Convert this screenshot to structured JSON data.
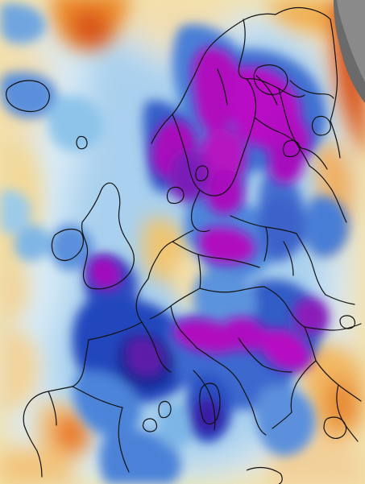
{
  "map": {
    "type": "weather-anomaly-map",
    "region": "Europe",
    "legend_visible": false,
    "colors": {
      "warm_deep": "#d95a12",
      "warm": "#f0a23c",
      "warm_light": "#f4d58b",
      "neutral": "#eaf3f8",
      "cold_light": "#b8d8ef",
      "cold": "#6fa6df",
      "cold_deep": "#2d4ec1",
      "cold_deeper": "#1d2b99",
      "extreme_cold": "#b10fc0",
      "outline": "#111111",
      "corner_dark": "#666666"
    }
  }
}
